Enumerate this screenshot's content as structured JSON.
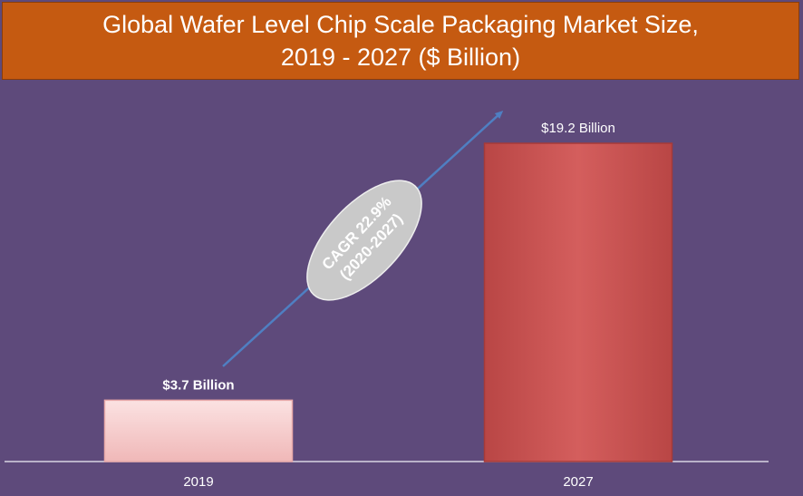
{
  "chart_data": {
    "type": "bar",
    "title_line1": "Global Wafer Level Chip Scale Packaging Market Size,",
    "title_line2": "2019 - 2027 ($ Billion)",
    "categories": [
      "2019",
      "2027"
    ],
    "values": [
      3.7,
      19.2
    ],
    "data_labels": [
      "$3.7 Billion",
      "$19.2 Billion"
    ],
    "bar_colors": [
      "#f3c4c4",
      "#cd5655"
    ],
    "ylim": [
      0,
      19.2
    ],
    "grid": false,
    "annotation": {
      "line1": "CAGR 22.9%",
      "line2": "(2020-2027)"
    }
  },
  "colors": {
    "background": "#5e4a7b",
    "title_band": "#c55a11",
    "arrow": "#4f7fc2",
    "ellipse": "#c9c9c9"
  }
}
